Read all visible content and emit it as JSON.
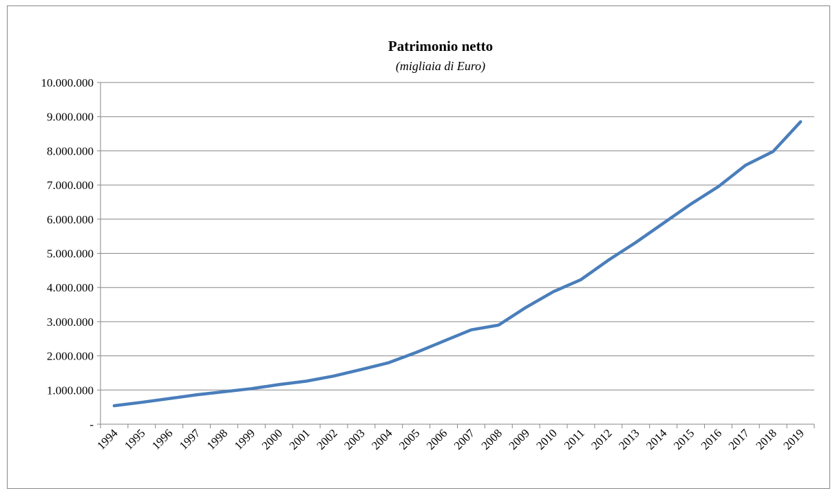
{
  "chart_data": {
    "type": "line",
    "title": "Patrimonio netto",
    "subtitle": "(migliaia di Euro)",
    "categories": [
      "1994",
      "1995",
      "1996",
      "1997",
      "1998",
      "1999",
      "2000",
      "2001",
      "2002",
      "2003",
      "2004",
      "2005",
      "2006",
      "2007",
      "2008",
      "2009",
      "2010",
      "2011",
      "2012",
      "2013",
      "2014",
      "2015",
      "2016",
      "2017",
      "2018",
      "2019"
    ],
    "series": [
      {
        "name": "Patrimonio netto",
        "color": "#4a7ebb",
        "values": [
          540000,
          640000,
          750000,
          860000,
          950000,
          1040000,
          1160000,
          1260000,
          1410000,
          1600000,
          1800000,
          2100000,
          2430000,
          2760000,
          2900000,
          3420000,
          3880000,
          4230000,
          4800000,
          5320000,
          5880000,
          6440000,
          6950000,
          7580000,
          7980000,
          8850000
        ]
      }
    ],
    "ylim": [
      0,
      10000000
    ],
    "yticks": [
      {
        "value": 0,
        "label": "-"
      },
      {
        "value": 1000000,
        "label": "1.000.000"
      },
      {
        "value": 2000000,
        "label": "2.000.000"
      },
      {
        "value": 3000000,
        "label": "3.000.000"
      },
      {
        "value": 4000000,
        "label": "4.000.000"
      },
      {
        "value": 5000000,
        "label": "5.000.000"
      },
      {
        "value": 6000000,
        "label": "6.000.000"
      },
      {
        "value": 7000000,
        "label": "7.000.000"
      },
      {
        "value": 8000000,
        "label": "8.000.000"
      },
      {
        "value": 9000000,
        "label": "9.000.000"
      },
      {
        "value": 10000000,
        "label": "10.000.000"
      }
    ],
    "grid": true
  }
}
